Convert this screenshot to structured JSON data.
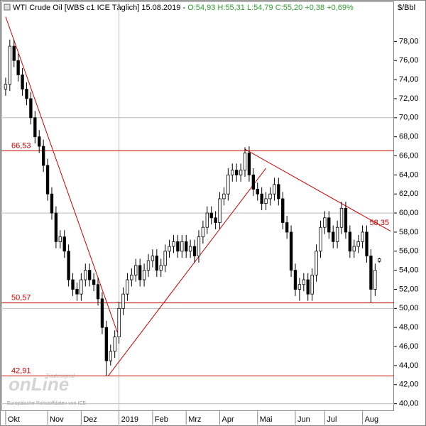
{
  "chart_data": {
    "type": "candlestick",
    "title": "WTI Crude Oil [WBS c1 ICE  Täglich] 15.08.2019 -",
    "quote": "O:54,93 H:55,31 L:54,79 C:55,20 +0,38 +0,69%",
    "unit": "$/Bbl",
    "source": "Europäische Rohstoffdaten von ICE",
    "watermark": "onLine",
    "watermark_small": "Tradesignal",
    "up_color": "#ffffff",
    "down_color": "#000000",
    "level_color": "#cc0000",
    "grid": true,
    "open": [
      73,
      73.5,
      77.5,
      76,
      74.5,
      73,
      72,
      70,
      68,
      67,
      65,
      62,
      60,
      57,
      57.5,
      56,
      53,
      52,
      51.5,
      53,
      54,
      53,
      52.5,
      51,
      48,
      44.5,
      45.5,
      47,
      50,
      51.5,
      53,
      53.5,
      54.5,
      53,
      54,
      55,
      55.5,
      54,
      54.5,
      56,
      56.5,
      57,
      56,
      57,
      56,
      56.5,
      55.5,
      57.5,
      58.5,
      60,
      59.5,
      59,
      61.5,
      62,
      64,
      64.5,
      64,
      64.5,
      66.3,
      64,
      62.5,
      62,
      61,
      61.5,
      62,
      63,
      61.5,
      59,
      58,
      54,
      52,
      52.5,
      53,
      51.5,
      53.5,
      56,
      58.5,
      59.5,
      58,
      57,
      58.5,
      60.5,
      58,
      56,
      56.5,
      57,
      58,
      55.5,
      52,
      54.93
    ],
    "high": [
      74.2,
      78.2,
      78.2,
      76.7,
      75.2,
      73.7,
      72.7,
      70.7,
      68.7,
      67.7,
      65.7,
      62.7,
      60.7,
      58.2,
      58.2,
      56.7,
      53.7,
      52.7,
      53.7,
      54.7,
      54.7,
      53.7,
      53.2,
      51.7,
      48.7,
      46.2,
      47.7,
      50.7,
      52.2,
      53.7,
      54.2,
      55.2,
      55.2,
      54.7,
      55.7,
      56.2,
      56.2,
      55.2,
      56.7,
      57.2,
      57.7,
      57.7,
      57.7,
      57.7,
      57.2,
      57.2,
      58.2,
      59.2,
      60.7,
      60.7,
      60.2,
      62.2,
      62.7,
      64.7,
      65.2,
      65.2,
      65.2,
      66.9,
      67,
      64.7,
      63.2,
      62.7,
      62.2,
      62.7,
      63.7,
      63.7,
      62.2,
      59.7,
      58.7,
      54.7,
      53.2,
      53.7,
      53.7,
      54.2,
      56.7,
      59.2,
      60.2,
      60.2,
      58.7,
      59.2,
      61.2,
      61.2,
      58.7,
      57.2,
      57.7,
      58.7,
      58.7,
      56.2,
      54.7,
      55.31
    ],
    "low": [
      72.3,
      72.8,
      75.3,
      73.8,
      72.3,
      71.3,
      69.3,
      67.3,
      66.3,
      64.3,
      61.3,
      59.3,
      56.3,
      56.3,
      55.3,
      52.3,
      51.3,
      50.8,
      50.8,
      52.3,
      52.3,
      51.8,
      50.3,
      47.3,
      42.91,
      44,
      44.8,
      46.3,
      49.3,
      50.8,
      52.3,
      52.8,
      52.3,
      52.3,
      53.3,
      54.3,
      53.3,
      53.3,
      53.8,
      55.3,
      55.8,
      55.3,
      55.3,
      55.3,
      55.3,
      54.8,
      54.8,
      56.8,
      57.8,
      58.8,
      58.3,
      58.3,
      60.8,
      61.3,
      63.3,
      63.3,
      63.3,
      63.8,
      63.3,
      61.8,
      61.3,
      60.3,
      60.3,
      60.8,
      61.3,
      60.8,
      58.3,
      57.3,
      53.3,
      51.3,
      50.8,
      51.8,
      50.8,
      50.8,
      52.8,
      55.3,
      57.8,
      57.3,
      56.3,
      56.3,
      57.8,
      57.3,
      55.3,
      55.3,
      55.8,
      56.3,
      54.8,
      50.6,
      51.3,
      54.79
    ],
    "close": [
      73.5,
      77.5,
      76,
      74.5,
      73,
      72,
      70,
      68,
      67,
      65,
      62,
      60,
      57,
      57.5,
      56,
      53,
      52,
      51.5,
      53,
      54,
      53,
      52.5,
      51,
      48,
      44.5,
      45.5,
      47,
      50,
      51.5,
      53,
      53.5,
      54.5,
      53,
      54,
      55,
      55.5,
      54,
      54.5,
      56,
      56.5,
      57,
      56,
      57,
      56,
      56.5,
      55.5,
      57.5,
      58.5,
      60,
      59.5,
      59,
      61.5,
      62,
      64,
      64.5,
      64,
      64.5,
      66.3,
      64,
      62.5,
      62,
      61,
      61.5,
      62,
      63,
      61.5,
      59,
      58,
      54,
      52,
      52.5,
      53,
      51.5,
      53.5,
      56,
      58.5,
      59.5,
      58,
      57,
      58.5,
      60.5,
      58,
      56,
      56.5,
      57,
      58,
      55.5,
      52,
      54,
      55.2
    ],
    "xlim": [
      -1,
      92
    ],
    "xticks": [
      {
        "value": 0,
        "label": "Okt"
      },
      {
        "value": 10,
        "label": "Nov"
      },
      {
        "value": 18,
        "label": "Dez"
      },
      {
        "value": 27,
        "label": "2019"
      },
      {
        "value": 35,
        "label": "Feb"
      },
      {
        "value": 43,
        "label": "Mrz"
      },
      {
        "value": 51,
        "label": "Apr"
      },
      {
        "value": 60,
        "label": "Mai"
      },
      {
        "value": 69,
        "label": "Jun"
      },
      {
        "value": 76,
        "label": "Jul"
      },
      {
        "value": 85,
        "label": "Aug"
      }
    ],
    "ylim": [
      39.3,
      82.2
    ],
    "yticks": [
      {
        "value": 40,
        "label": "40,00"
      },
      {
        "value": 42,
        "label": "42,00"
      },
      {
        "value": 44,
        "label": "44,00"
      },
      {
        "value": 46,
        "label": "46,00"
      },
      {
        "value": 48,
        "label": "48,00"
      },
      {
        "value": 50,
        "label": "50,00"
      },
      {
        "value": 52,
        "label": "52,00"
      },
      {
        "value": 54,
        "label": "54,00"
      },
      {
        "value": 56,
        "label": "56,00"
      },
      {
        "value": 58,
        "label": "58,00"
      },
      {
        "value": 60,
        "label": "60,00"
      },
      {
        "value": 62,
        "label": "62,00"
      },
      {
        "value": 64,
        "label": "64,00"
      },
      {
        "value": 66,
        "label": "66,00"
      },
      {
        "value": 68,
        "label": "68,00"
      },
      {
        "value": 70,
        "label": "70,00"
      },
      {
        "value": 72,
        "label": "72,00"
      },
      {
        "value": 74,
        "label": "74,00"
      },
      {
        "value": 76,
        "label": "76,00"
      },
      {
        "value": 78,
        "label": "78,00"
      }
    ],
    "levels": [
      {
        "value": 66.53,
        "label": "66,53"
      },
      {
        "value": 50.57,
        "label": "50,57"
      },
      {
        "value": 42.91,
        "label": "42,91"
      }
    ],
    "trend_label": {
      "value": 58.35,
      "label": "58,35"
    },
    "trendlines": [
      {
        "x": [
          0,
          26.6
        ],
        "y": [
          80.6,
          47.5
        ]
      },
      {
        "x": [
          24.4,
          62
        ],
        "y": [
          42.9,
          64.7
        ]
      },
      {
        "x": [
          57,
          91.7
        ],
        "y": [
          66.7,
          58.1
        ]
      }
    ]
  }
}
